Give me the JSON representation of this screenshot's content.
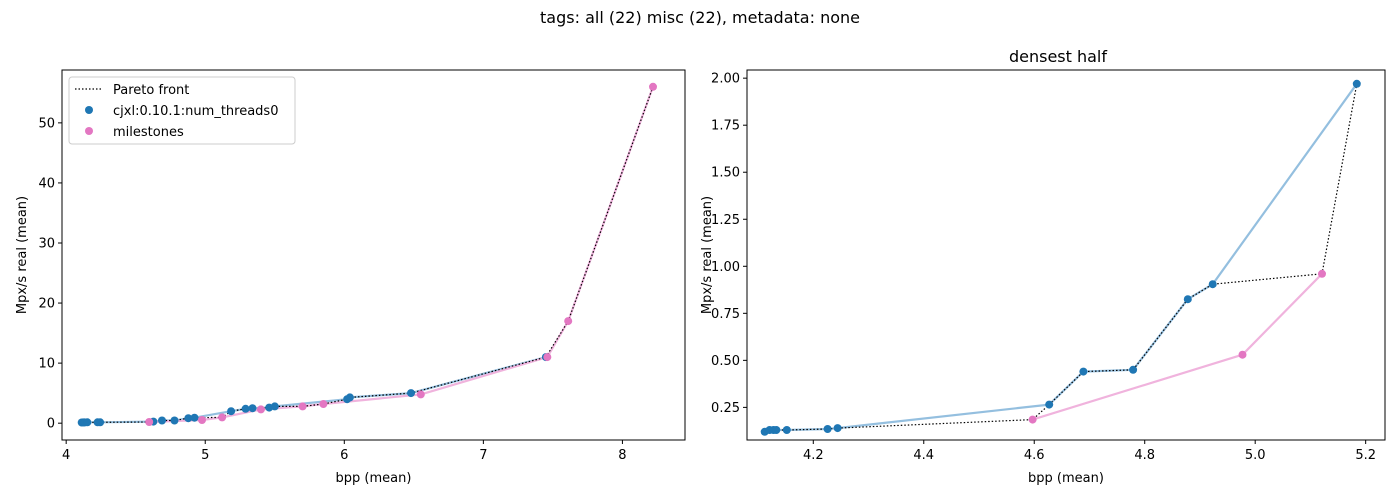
{
  "figure": {
    "suptitle": "tags: all (22) misc (22), metadata: none"
  },
  "colors": {
    "series_a": "#1f77b4",
    "series_a_line": "#94bfdf",
    "milestones": "#e377c2",
    "milestones_line": "#f0b3dd",
    "pareto": "#000000"
  },
  "chart_data": [
    {
      "type": "scatter",
      "title": "",
      "xlabel": "bpp (mean)",
      "ylabel": "Mpx/s real (mean)",
      "xlim": [
        3.97,
        8.45
      ],
      "ylim": [
        -2.8,
        58.8
      ],
      "xticks": [
        4,
        5,
        6,
        7,
        8
      ],
      "yticks": [
        0,
        10,
        20,
        30,
        40,
        50
      ],
      "grid": false,
      "legend": "top-left",
      "legend_entries": [
        "Pareto front",
        "cjxl:0.10.1:num_threads0",
        "milestones"
      ],
      "series": [
        {
          "name": "cjxl:0.10.1:num_threads0",
          "x": [
            4.112,
            4.121,
            4.128,
            4.133,
            4.152,
            4.226,
            4.244,
            4.627,
            4.689,
            4.779,
            4.878,
            4.923,
            5.186,
            5.29,
            5.34,
            5.46,
            5.5,
            6.02,
            6.04,
            6.48,
            7.45
          ],
          "y": [
            0.12,
            0.13,
            0.13,
            0.13,
            0.14,
            0.14,
            0.14,
            0.27,
            0.44,
            0.45,
            0.83,
            0.91,
            2.0,
            2.4,
            2.5,
            2.6,
            2.8,
            4.0,
            4.3,
            5.0,
            11.0
          ]
        },
        {
          "name": "milestones",
          "x": [
            4.597,
            4.977,
            5.121,
            5.4,
            5.7,
            5.85,
            6.55,
            7.46,
            7.61,
            8.22
          ],
          "y": [
            0.19,
            0.53,
            0.96,
            2.3,
            2.8,
            3.2,
            4.8,
            11.0,
            17.0,
            56.0
          ]
        }
      ],
      "pareto": {
        "name": "Pareto front",
        "x": [
          4.112,
          4.121,
          4.128,
          4.133,
          4.152,
          4.226,
          4.244,
          4.597,
          4.627,
          4.689,
          4.779,
          4.878,
          4.923,
          5.121,
          5.186,
          5.29,
          5.34,
          5.46,
          5.5,
          5.7,
          5.85,
          6.02,
          6.04,
          6.48,
          7.45,
          7.61,
          8.22
        ],
        "y": [
          0.12,
          0.13,
          0.13,
          0.13,
          0.14,
          0.14,
          0.14,
          0.19,
          0.27,
          0.44,
          0.45,
          0.83,
          0.91,
          0.96,
          2.0,
          2.4,
          2.5,
          2.6,
          2.8,
          2.8,
          3.2,
          4.0,
          4.3,
          5.0,
          11.0,
          17.0,
          56.0
        ]
      }
    },
    {
      "type": "scatter",
      "title": "densest half",
      "xlabel": "bpp (mean)",
      "ylabel": "Mpx/s real (mean)",
      "xlim": [
        4.08,
        5.235
      ],
      "ylim": [
        0.0766,
        2.0434
      ],
      "xticks": [
        4.2,
        4.4,
        4.6,
        4.8,
        5.0,
        5.2
      ],
      "xtick_labels": [
        "4.2",
        "4.4",
        "4.6",
        "4.8",
        "5.0",
        "5.2"
      ],
      "yticks": [
        0.25,
        0.5,
        0.75,
        1.0,
        1.25,
        1.5,
        1.75,
        2.0
      ],
      "ytick_labels": [
        "0.25",
        "0.50",
        "0.75",
        "1.00",
        "1.25",
        "1.50",
        "1.75",
        "2.00"
      ],
      "grid": false,
      "series": [
        {
          "name": "cjxl:0.10.1:num_threads0",
          "x": [
            4.112,
            4.121,
            4.128,
            4.133,
            4.152,
            4.226,
            4.244,
            4.627,
            4.689,
            4.779,
            4.878,
            4.923,
            5.184
          ],
          "y": [
            0.12,
            0.13,
            0.13,
            0.13,
            0.13,
            0.135,
            0.14,
            0.265,
            0.44,
            0.45,
            0.825,
            0.905,
            1.97
          ]
        },
        {
          "name": "milestones",
          "x": [
            4.597,
            4.977,
            5.121
          ],
          "y": [
            0.185,
            0.53,
            0.96
          ]
        }
      ],
      "pareto": {
        "name": "Pareto front",
        "x": [
          4.112,
          4.121,
          4.128,
          4.133,
          4.152,
          4.226,
          4.244,
          4.597,
          4.627,
          4.689,
          4.779,
          4.878,
          4.923,
          5.121,
          5.184
        ],
        "y": [
          0.12,
          0.13,
          0.13,
          0.13,
          0.13,
          0.135,
          0.14,
          0.185,
          0.265,
          0.44,
          0.45,
          0.825,
          0.905,
          0.96,
          1.97
        ]
      }
    }
  ]
}
